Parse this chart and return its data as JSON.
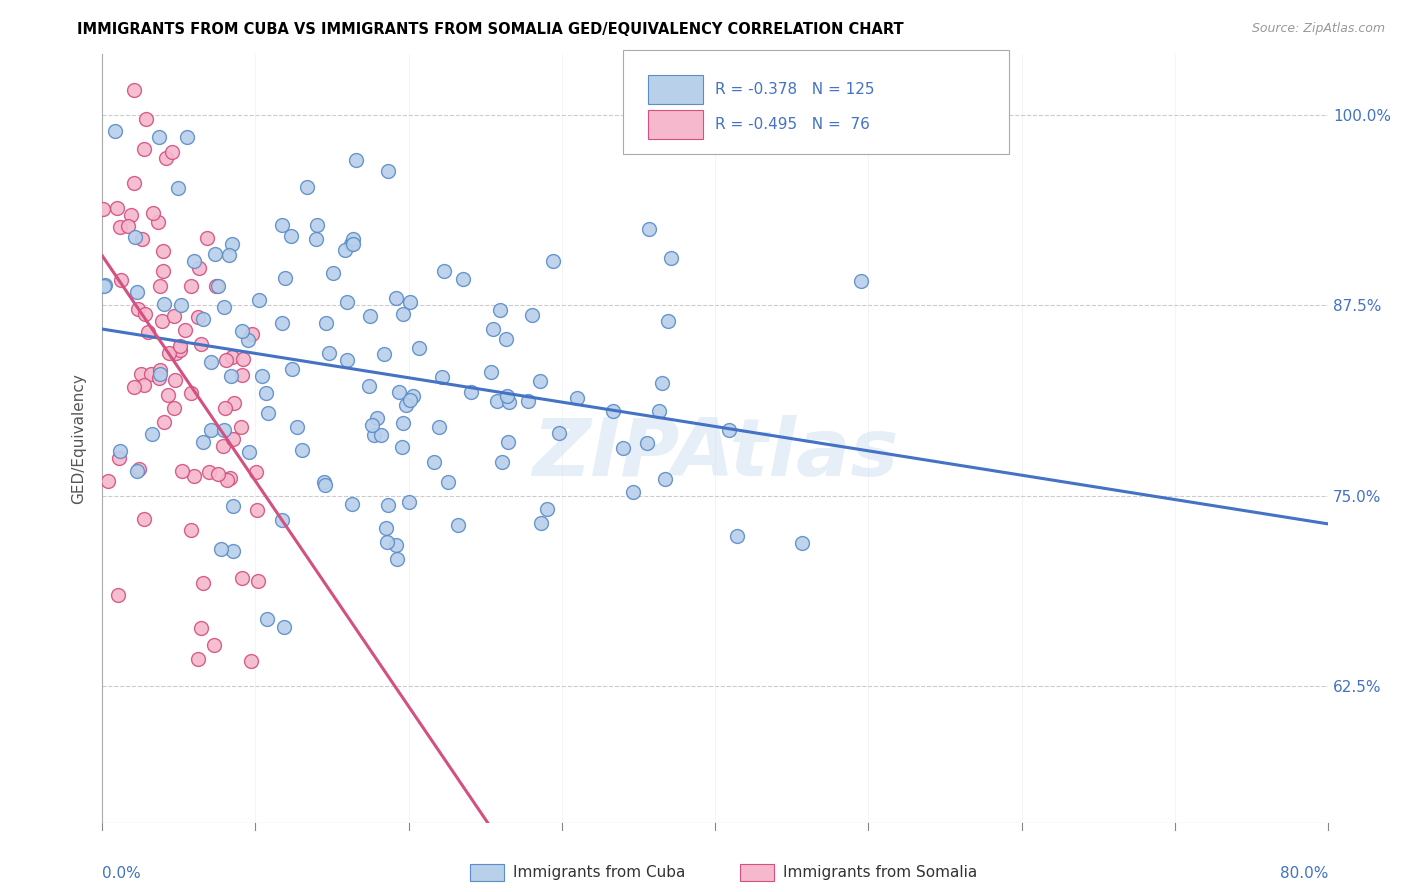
{
  "title": "IMMIGRANTS FROM CUBA VS IMMIGRANTS FROM SOMALIA GED/EQUIVALENCY CORRELATION CHART",
  "source": "Source: ZipAtlas.com",
  "ylabel": "GED/Equivalency",
  "ytick_labels": [
    "100.0%",
    "87.5%",
    "75.0%",
    "62.5%"
  ],
  "ytick_values": [
    1.0,
    0.875,
    0.75,
    0.625
  ],
  "xlim": [
    0.0,
    0.8
  ],
  "ylim": [
    0.535,
    1.04
  ],
  "cuba_color": "#b8d0ea",
  "cuba_edge_color": "#5b8dc8",
  "somalia_color": "#f5b8cc",
  "somalia_edge_color": "#d45080",
  "cuba_line_color": "#4472c4",
  "somalia_line_color": "#d45080",
  "cuba_R": -0.378,
  "cuba_N": 125,
  "somalia_R": -0.495,
  "somalia_N": 76,
  "legend_label_cuba": "Immigrants from Cuba",
  "legend_label_somalia": "Immigrants from Somalia",
  "watermark": "ZIPAtlas",
  "title_fontsize": 10.5,
  "marker_size": 100,
  "grid_color": "#cccccc",
  "right_tick_color": "#4472c4"
}
